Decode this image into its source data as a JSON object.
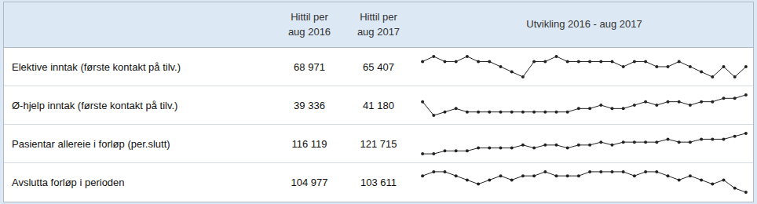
{
  "chart_data": [
    {
      "type": "table",
      "annotations": [
        "Hittil per\naug 2016",
        "Hittil per\naug 2017",
        "Utvikling 2016 - aug 2017"
      ]
    },
    {
      "type": "line",
      "title": "Elektive inntak (første kontakt på tilv.)",
      "annotations": [
        "68 971",
        "65 407"
      ],
      "categories": [
        null,
        null,
        null,
        null,
        null,
        null,
        null,
        null,
        null,
        null,
        null,
        null,
        null,
        null,
        null,
        null,
        null,
        null,
        null,
        null,
        null,
        null,
        null,
        null,
        null,
        null,
        null,
        null,
        null,
        null
      ],
      "values": [
        6,
        7,
        6,
        6,
        7,
        6,
        6,
        5,
        4,
        3,
        6,
        6,
        7,
        6,
        6,
        6,
        6,
        6,
        5,
        6,
        6,
        5,
        5,
        6,
        5,
        4,
        3,
        5,
        3,
        5
      ],
      "color": "#222222",
      "marker": "o",
      "ylim": [
        2.4,
        7.6
      ],
      "grid": false,
      "tick_labels": false
    },
    {
      "type": "line",
      "title": "Ø-hjelp inntak (første kontakt på tilv.)",
      "annotations": [
        "39 336",
        "41 180"
      ],
      "categories": [
        null,
        null,
        null,
        null,
        null,
        null,
        null,
        null,
        null,
        null,
        null,
        null,
        null,
        null,
        null,
        null,
        null,
        null,
        null,
        null,
        null,
        null,
        null,
        null,
        null,
        null,
        null,
        null,
        null,
        null
      ],
      "values": [
        8,
        4,
        5,
        6,
        5,
        5,
        5,
        5,
        5,
        5,
        5,
        5,
        5,
        5,
        6,
        6,
        7,
        6,
        6,
        7,
        8,
        7,
        8,
        8,
        7,
        8,
        8,
        9,
        9,
        10
      ],
      "color": "#222222",
      "marker": "o",
      "ylim": [
        3.1,
        10.9
      ],
      "grid": false,
      "tick_labels": false
    },
    {
      "type": "line",
      "title": "Pasientar allereie i forløp (per.slutt)",
      "annotations": [
        "116 119",
        "121 715"
      ],
      "categories": [
        null,
        null,
        null,
        null,
        null,
        null,
        null,
        null,
        null,
        null,
        null,
        null,
        null,
        null,
        null,
        null,
        null,
        null,
        null,
        null,
        null,
        null,
        null,
        null,
        null,
        null,
        null,
        null,
        null,
        null
      ],
      "values": [
        3,
        3,
        4,
        4,
        4,
        5,
        5,
        5,
        5,
        6,
        5,
        6,
        6,
        5,
        6,
        6,
        7,
        6,
        7,
        7,
        7,
        7,
        8,
        7,
        7,
        8,
        8,
        8,
        9,
        10
      ],
      "color": "#222222",
      "marker": "o",
      "ylim": [
        1.95,
        11.05
      ],
      "grid": false,
      "tick_labels": false
    },
    {
      "type": "line",
      "title": "Avslutta forløp i perioden",
      "annotations": [
        "104 977",
        "103 611"
      ],
      "categories": [
        null,
        null,
        null,
        null,
        null,
        null,
        null,
        null,
        null,
        null,
        null,
        null,
        null,
        null,
        null,
        null,
        null,
        null,
        null,
        null,
        null,
        null,
        null,
        null,
        null,
        null,
        null,
        null,
        null,
        null
      ],
      "values": [
        5,
        6,
        6,
        5,
        4,
        3,
        4,
        5,
        4,
        5,
        5,
        6,
        5,
        5,
        5,
        6,
        6,
        6,
        6,
        5,
        6,
        6,
        5,
        4,
        5,
        4,
        3,
        4,
        2,
        1
      ],
      "color": "#222222",
      "marker": "o",
      "ylim": [
        0.25,
        6.75
      ],
      "grid": false,
      "tick_labels": false
    }
  ]
}
